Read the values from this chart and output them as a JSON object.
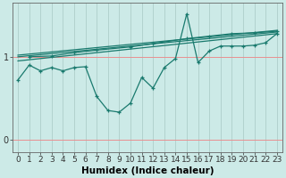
{
  "xlabel": "Humidex (Indice chaleur)",
  "bg_color": "#cceae7",
  "line_color": "#1a7a6e",
  "xlim": [
    -0.5,
    23.5
  ],
  "ylim": [
    -0.15,
    1.65
  ],
  "yticks": [
    0,
    1
  ],
  "ytick_labels": [
    "0",
    "1"
  ],
  "xticks": [
    0,
    1,
    2,
    3,
    4,
    5,
    6,
    7,
    8,
    9,
    10,
    11,
    12,
    13,
    14,
    15,
    16,
    17,
    18,
    19,
    20,
    21,
    22,
    23
  ],
  "lines": [
    {
      "x": [
        0,
        1,
        2,
        3,
        4,
        5,
        6,
        7,
        8,
        9,
        10,
        11,
        12,
        13,
        14,
        15,
        16,
        17,
        18,
        19,
        20,
        21,
        22,
        23
      ],
      "y": [
        0.72,
        0.9,
        0.83,
        0.87,
        0.83,
        0.87,
        0.88,
        0.52,
        0.35,
        0.33,
        0.44,
        0.75,
        0.62,
        0.87,
        0.98,
        1.52,
        0.93,
        1.07,
        1.13,
        1.13,
        1.13,
        1.14,
        1.17,
        1.28
      ],
      "marker": "+",
      "lw": 0.9
    },
    {
      "x": [
        1,
        3,
        5,
        7,
        10,
        12,
        15,
        17,
        19,
        21,
        23
      ],
      "y": [
        1.0,
        1.01,
        1.05,
        1.08,
        1.12,
        1.16,
        1.22,
        1.25,
        1.28,
        1.29,
        1.31
      ],
      "marker": "+",
      "lw": 0.9
    },
    {
      "x": [
        0,
        23
      ],
      "y": [
        0.95,
        1.28
      ],
      "marker": null,
      "lw": 0.9
    },
    {
      "x": [
        0,
        23
      ],
      "y": [
        1.0,
        1.3
      ],
      "marker": null,
      "lw": 0.9
    },
    {
      "x": [
        0,
        23
      ],
      "y": [
        1.02,
        1.32
      ],
      "marker": null,
      "lw": 0.9
    }
  ],
  "hgrid_color": "#e89090",
  "vgrid_color": "#a8c8c4",
  "tick_fontsize": 6.5,
  "xlabel_fontsize": 7.5
}
